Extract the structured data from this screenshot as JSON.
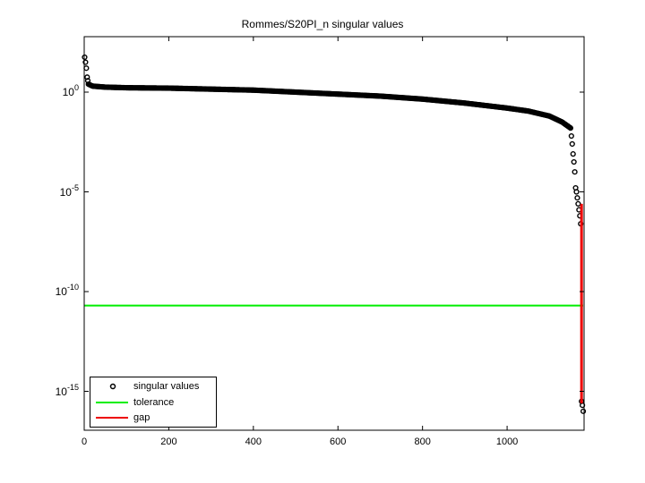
{
  "chart_data": {
    "type": "scatter",
    "title": "Rommes/S20PI_n singular values",
    "xlabel": "",
    "ylabel": "",
    "yscale": "log",
    "xlim": [
      0,
      1182
    ],
    "ylim_log10": [
      -17.0,
      2.7
    ],
    "xticks": [
      0,
      200,
      400,
      600,
      800,
      1000
    ],
    "xtick_labels": [
      "0",
      "200",
      "400",
      "600",
      "800",
      "1000"
    ],
    "yticks_log10": [
      0,
      -5,
      -10,
      -15
    ],
    "ytick_labels": [
      {
        "base": "10",
        "exp": "0"
      },
      {
        "base": "10",
        "exp": "-5"
      },
      {
        "base": "10",
        "exp": "-10"
      },
      {
        "base": "10",
        "exp": "-15"
      }
    ],
    "grid": false,
    "legend_position": "lower left",
    "series": [
      {
        "name": "singular values",
        "style": "markers",
        "marker": "open-circle",
        "color": "#000000",
        "points_log10": [
          [
            1,
            1.75
          ],
          [
            3,
            1.5
          ],
          [
            5,
            1.2
          ],
          [
            7,
            0.75
          ],
          [
            10,
            0.4
          ],
          [
            20,
            0.3
          ],
          [
            50,
            0.25
          ],
          [
            100,
            0.22
          ],
          [
            200,
            0.2
          ],
          [
            300,
            0.15
          ],
          [
            400,
            0.1
          ],
          [
            500,
            0.0
          ],
          [
            600,
            -0.1
          ],
          [
            700,
            -0.2
          ],
          [
            800,
            -0.35
          ],
          [
            900,
            -0.55
          ],
          [
            1000,
            -0.8
          ],
          [
            1050,
            -0.95
          ],
          [
            1100,
            -1.2
          ],
          [
            1130,
            -1.5
          ],
          [
            1150,
            -1.8
          ],
          [
            1152,
            -2.2
          ],
          [
            1154,
            -2.6
          ],
          [
            1156,
            -3.1
          ],
          [
            1158,
            -3.5
          ],
          [
            1160,
            -4.0
          ],
          [
            1162,
            -4.8
          ],
          [
            1164,
            -5.0
          ],
          [
            1166,
            -5.3
          ],
          [
            1168,
            -5.6
          ],
          [
            1170,
            -5.9
          ],
          [
            1172,
            -6.2
          ],
          [
            1174,
            -6.6
          ],
          [
            1176,
            -15.5
          ],
          [
            1178,
            -15.7
          ],
          [
            1180,
            -16.0
          ]
        ]
      },
      {
        "name": "tolerance",
        "style": "line",
        "color": "#00ee00",
        "value_log10": -10.7
      },
      {
        "name": "gap",
        "style": "line",
        "color": "#ee0000",
        "x": 1176,
        "from_log10": -5.6,
        "to_log10": -15.6
      }
    ]
  },
  "legend": {
    "items": [
      {
        "label": "singular values"
      },
      {
        "label": "tolerance"
      },
      {
        "label": "gap"
      }
    ]
  }
}
